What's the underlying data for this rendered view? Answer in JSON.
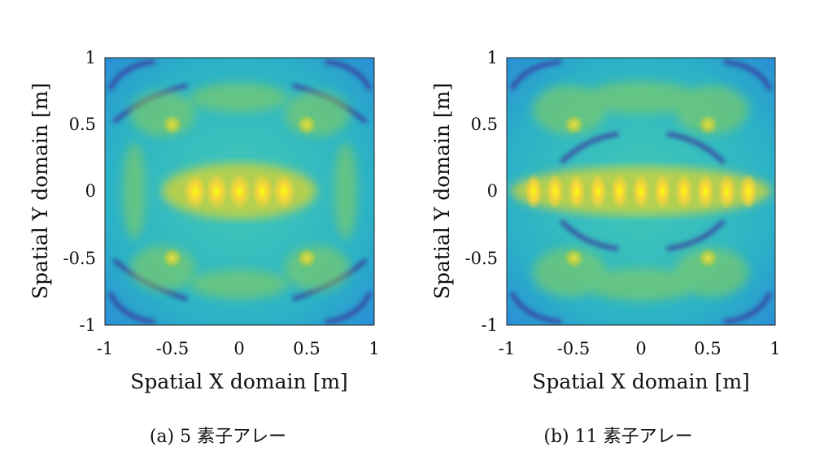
{
  "chart_data": [
    {
      "type": "heatmap",
      "caption": "(a) 5 素子アレー",
      "xlabel": "Spatial X domain [m]",
      "ylabel": "Spatial Y domain [m]",
      "xlim": [
        -1,
        1
      ],
      "ylim": [
        -1,
        1
      ],
      "xticks": [
        "-1",
        "-0.5",
        "0",
        "0.5",
        "1"
      ],
      "yticks": [
        "1",
        "0.5",
        "0",
        "-0.5",
        "-1"
      ],
      "colormap": "parula",
      "elements": 5,
      "peaks": [
        {
          "x": -0.33,
          "y": 0
        },
        {
          "x": -0.17,
          "y": 0
        },
        {
          "x": 0,
          "y": 0
        },
        {
          "x": 0.17,
          "y": 0
        },
        {
          "x": 0.33,
          "y": 0
        },
        {
          "x": -0.5,
          "y": 0.5
        },
        {
          "x": 0.5,
          "y": 0.5
        },
        {
          "x": -0.5,
          "y": -0.5
        },
        {
          "x": 0.5,
          "y": -0.5
        }
      ]
    },
    {
      "type": "heatmap",
      "caption": "(b) 11 素子アレー",
      "xlabel": "Spatial X domain [m]",
      "ylabel": "Spatial Y domain [m]",
      "xlim": [
        -1,
        1
      ],
      "ylim": [
        -1,
        1
      ],
      "xticks": [
        "-1",
        "-0.5",
        "0",
        "0.5",
        "1"
      ],
      "yticks": [
        "1",
        "0.5",
        "0",
        "-0.5",
        "-1"
      ],
      "colormap": "parula",
      "elements": 11,
      "peaks": [
        {
          "x": -0.8,
          "y": 0
        },
        {
          "x": -0.64,
          "y": 0
        },
        {
          "x": -0.48,
          "y": 0
        },
        {
          "x": -0.32,
          "y": 0
        },
        {
          "x": -0.16,
          "y": 0
        },
        {
          "x": 0,
          "y": 0
        },
        {
          "x": 0.16,
          "y": 0
        },
        {
          "x": 0.32,
          "y": 0
        },
        {
          "x": 0.48,
          "y": 0
        },
        {
          "x": 0.64,
          "y": 0
        },
        {
          "x": 0.8,
          "y": 0
        },
        {
          "x": -0.5,
          "y": 0.5
        },
        {
          "x": 0.5,
          "y": 0.5
        },
        {
          "x": -0.5,
          "y": -0.5
        },
        {
          "x": 0.5,
          "y": -0.5
        }
      ]
    }
  ]
}
